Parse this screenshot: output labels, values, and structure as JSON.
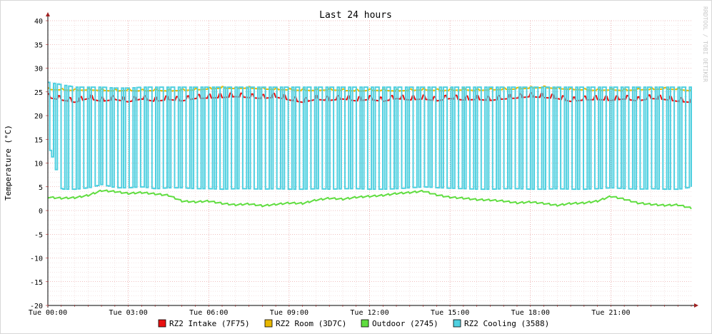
{
  "chart_data": {
    "type": "line",
    "title": "Last 24 hours",
    "ylabel": "Temperature (°C)",
    "xlabel": "",
    "watermark": "RRDTOOL / TOBI OETIKER",
    "ylim": [
      -20,
      40
    ],
    "yticks": [
      -20,
      -15,
      -10,
      -5,
      0,
      5,
      10,
      15,
      20,
      25,
      30,
      35,
      40
    ],
    "xlim_hours": [
      0,
      24
    ],
    "x_tick_labels": [
      "Tue 00:00",
      "Tue 03:00",
      "Tue 06:00",
      "Tue 09:00",
      "Tue 12:00",
      "Tue 15:00",
      "Tue 18:00",
      "Tue 21:00"
    ],
    "x_tick_hours": [
      0,
      3,
      6,
      9,
      12,
      15,
      18,
      21
    ],
    "grid": true,
    "legend_position": "bottom",
    "colors": {
      "background": "#ffffff",
      "frame": "#f3f3f3",
      "grid_minor": "#e8c8c8",
      "grid_major": "#e08080",
      "axis": "#000000",
      "arrow": "#a02020"
    },
    "series": [
      {
        "name": "RZ2 Intake (7F75)",
        "color": "#e81010",
        "x_hours": [
          0,
          0.5,
          1,
          1.5,
          2,
          2.5,
          3,
          3.5,
          4,
          4.5,
          5,
          5.5,
          6,
          6.5,
          7,
          7.5,
          8,
          8.5,
          9,
          9.5,
          10,
          10.5,
          11,
          11.5,
          12,
          12.5,
          13,
          13.5,
          14,
          14.5,
          15,
          15.5,
          16,
          16.5,
          17,
          17.5,
          18,
          18.5,
          19,
          19.5,
          20,
          20.5,
          21,
          21.5,
          22,
          22.5,
          23,
          23.5,
          24
        ],
        "values": [
          24,
          23.5,
          23,
          23.8,
          23.2,
          23.6,
          23.1,
          23.7,
          23.2,
          23.6,
          23.3,
          23.8,
          23.9,
          24,
          24.2,
          24,
          23.8,
          24.1,
          23.5,
          23,
          23.6,
          23.4,
          23.7,
          23.3,
          23.6,
          23.2,
          23.8,
          23.5,
          23.7,
          23.3,
          23.8,
          23.5,
          23.6,
          23.4,
          23.7,
          23.9,
          24.2,
          24,
          23.8,
          23.2,
          23.5,
          23.6,
          23.4,
          23.7,
          23.3,
          23.8,
          23.6,
          23.2,
          23
        ],
        "point_labels": []
      },
      {
        "name": "RZ2 Room (3D7C)",
        "color": "#e8b800",
        "x_hours": [
          0,
          0.5,
          1,
          1.5,
          2,
          2.5,
          3,
          3.5,
          4,
          4.5,
          5,
          5.5,
          6,
          6.5,
          7,
          7.5,
          8,
          8.5,
          9,
          9.5,
          10,
          10.5,
          11,
          11.5,
          12,
          12.5,
          13,
          13.5,
          14,
          14.5,
          15,
          15.5,
          16,
          16.5,
          17,
          17.5,
          18,
          18.5,
          19,
          19.5,
          20,
          20.5,
          21,
          21.5,
          22,
          22.5,
          23,
          23.5,
          24
        ],
        "values": [
          25.5,
          25.4,
          25.3,
          25.4,
          25.3,
          25.2,
          25.3,
          25.2,
          25.3,
          25.2,
          25.3,
          25.4,
          25.6,
          25.8,
          25.7,
          25.8,
          25.6,
          25.5,
          25.4,
          25.3,
          25.3,
          25.4,
          25.3,
          25.2,
          25.3,
          25.3,
          25.2,
          25.3,
          25.4,
          25.3,
          25.3,
          25.4,
          25.3,
          25.4,
          25.5,
          25.6,
          25.8,
          25.9,
          25.7,
          25.5,
          25.4,
          25.3,
          25.4,
          25.3,
          25.4,
          25.5,
          25.6,
          25.5,
          25.2
        ],
        "point_labels": []
      },
      {
        "name": "Outdoor (2745)",
        "color": "#60dd40",
        "x_hours": [
          0,
          0.5,
          1,
          1.5,
          2,
          2.5,
          3,
          3.5,
          4,
          4.5,
          5,
          5.5,
          6,
          6.5,
          7,
          7.5,
          8,
          8.5,
          9,
          9.5,
          10,
          10.5,
          11,
          11.5,
          12,
          12.5,
          13,
          13.5,
          14,
          14.5,
          15,
          15.5,
          16,
          16.5,
          17,
          17.5,
          18,
          18.5,
          19,
          19.5,
          20,
          20.5,
          21,
          21.5,
          22,
          22.5,
          23,
          23.5,
          24
        ],
        "values": [
          2.8,
          2.6,
          2.7,
          3.2,
          4.2,
          4,
          3.6,
          3.8,
          3.5,
          3.2,
          2,
          1.8,
          2,
          1.5,
          1.2,
          1.4,
          1,
          1.3,
          1.6,
          1.5,
          2.2,
          2.6,
          2.4,
          2.8,
          3,
          3.2,
          3.6,
          3.8,
          4.1,
          3.3,
          2.8,
          2.6,
          2.3,
          2.2,
          2,
          1.6,
          1.8,
          1.5,
          1.1,
          1.5,
          1.6,
          2,
          3,
          2.4,
          1.6,
          1.3,
          1.1,
          1.2,
          0.5
        ],
        "point_labels": []
      },
      {
        "name": "RZ2 Cooling (3588)",
        "color": "#50d0e0",
        "pattern": "rapid on/off cycling between low and high values",
        "low_values": [
          14,
          4.5,
          4.5,
          4.8,
          5.5,
          4.8,
          4.8,
          5,
          4.6,
          4.8,
          4.8,
          4.6,
          4.6,
          4.5,
          4.6,
          4.6,
          4.5,
          4.6,
          4.5,
          4.5,
          4.6,
          4.5,
          4.6,
          4.6,
          4.5,
          4.5,
          4.6,
          4.8,
          5,
          4.8,
          4.7,
          4.6,
          4.5,
          4.5,
          4.6,
          4.6,
          4.5,
          4.5,
          4.6,
          4.5,
          4.5,
          4.6,
          4.8,
          4.6,
          4.5,
          4.6,
          4.5,
          4.5,
          5
        ],
        "high_values": [
          27,
          26.5,
          26,
          26,
          26,
          25.8,
          25.8,
          26,
          26,
          26,
          26,
          26,
          26,
          26,
          26,
          26,
          26,
          26,
          26,
          26,
          26,
          26,
          26,
          26,
          26,
          26,
          26,
          26,
          26,
          26,
          26,
          26,
          26,
          26,
          26,
          26,
          26,
          26,
          26,
          26,
          26,
          26,
          26,
          26,
          26,
          26,
          26,
          26,
          26
        ],
        "x_hours": [
          0,
          0.5,
          1,
          1.5,
          2,
          2.5,
          3,
          3.5,
          4,
          4.5,
          5,
          5.5,
          6,
          6.5,
          7,
          7.5,
          8,
          8.5,
          9,
          9.5,
          10,
          10.5,
          11,
          11.5,
          12,
          12.5,
          13,
          13.5,
          14,
          14.5,
          15,
          15.5,
          16,
          16.5,
          17,
          17.5,
          18,
          18.5,
          19,
          19.5,
          20,
          20.5,
          21,
          21.5,
          22,
          22.5,
          23,
          23.5,
          24
        ],
        "point_labels": []
      }
    ]
  }
}
